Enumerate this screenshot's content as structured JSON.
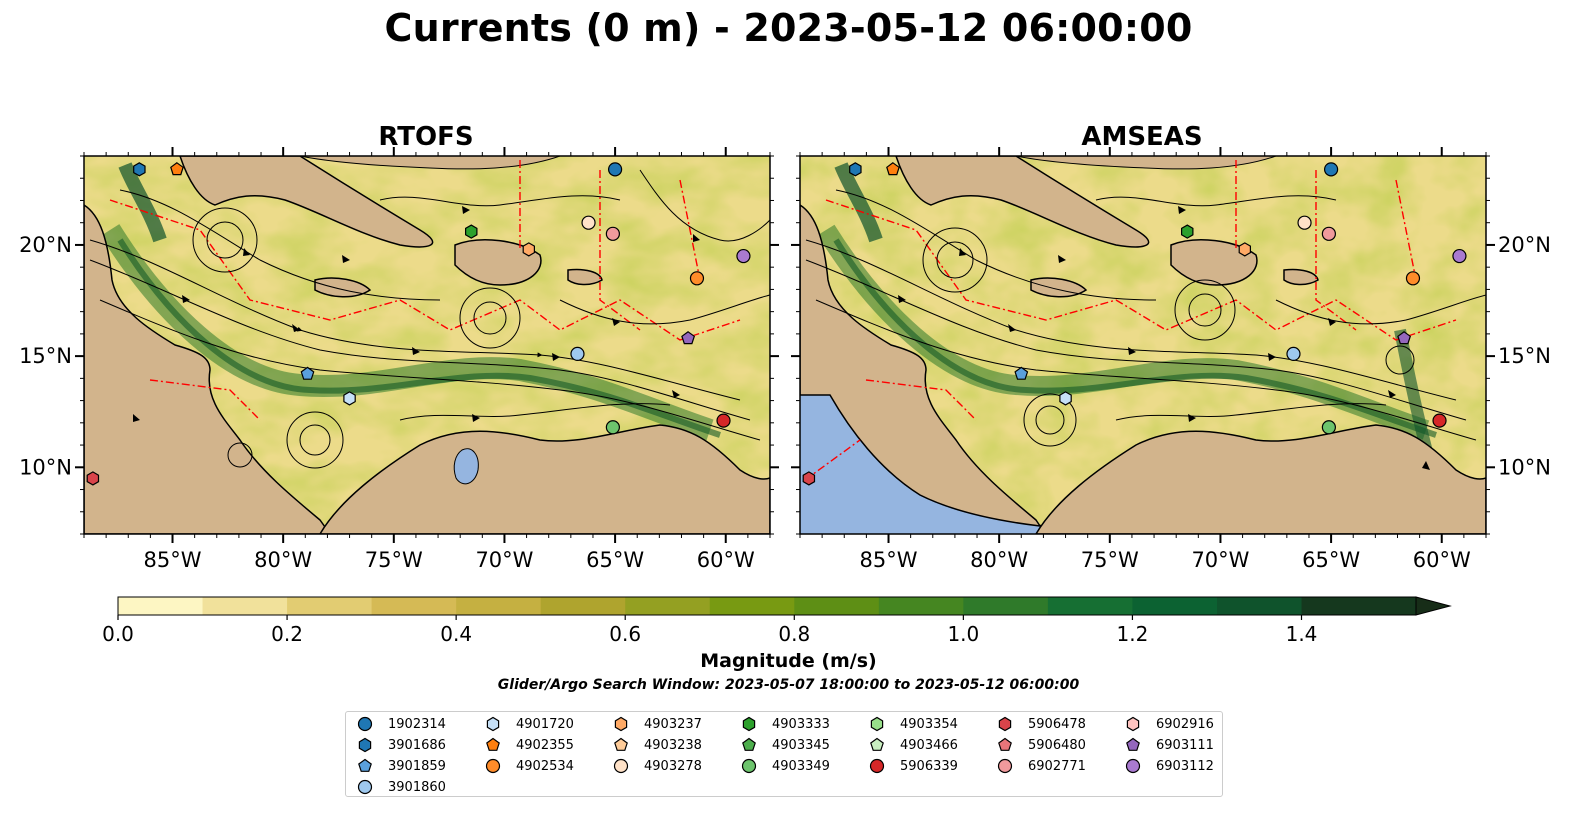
{
  "title": "Currents (0 m) - 2023-05-12 06:00:00",
  "panels": [
    {
      "title": "RTOFS"
    },
    {
      "title": "AMSEAS"
    }
  ],
  "axes": {
    "lon_ticks": [
      "85°W",
      "80°W",
      "75°W",
      "70°W",
      "65°W",
      "60°W"
    ],
    "lat_ticks": [
      "20°N",
      "15°N",
      "10°N"
    ]
  },
  "colorbar": {
    "label": "Magnitude (m/s)",
    "tick_labels": [
      "0.0",
      "0.2",
      "0.4",
      "0.6",
      "0.8",
      "1.0",
      "1.2",
      "1.4"
    ],
    "colors": [
      "#fdf6c3",
      "#f1e19b",
      "#e2cc72",
      "#d5ba55",
      "#c5b041",
      "#afa42e",
      "#94a022",
      "#789a12",
      "#5e8f15",
      "#458621",
      "#2f7a2a",
      "#166f33",
      "#0c6232",
      "#0f532c",
      "#134525",
      "#15381e",
      "#172d18"
    ]
  },
  "search_window": "Glider/Argo Search Window: 2023-05-07 18:00:00 to 2023-05-12 06:00:00",
  "legend": [
    {
      "id": "1902314",
      "marker": "circle",
      "color": "#1f77b4"
    },
    {
      "id": "3901686",
      "marker": "hexagon",
      "color": "#1f77b4"
    },
    {
      "id": "3901859",
      "marker": "pentagon",
      "color": "#5aa0dc"
    },
    {
      "id": "3901860",
      "marker": "circle",
      "color": "#9ec8ee"
    },
    {
      "id": "4901720",
      "marker": "hexagon",
      "color": "#c6e0f7"
    },
    {
      "id": "4902355",
      "marker": "pentagon",
      "color": "#ff7f0e"
    },
    {
      "id": "4902534",
      "marker": "circle",
      "color": "#ff8c2a"
    },
    {
      "id": "4903237",
      "marker": "hexagon",
      "color": "#ffaa66"
    },
    {
      "id": "4903238",
      "marker": "pentagon",
      "color": "#ffcc99"
    },
    {
      "id": "4903278",
      "marker": "circle",
      "color": "#ffe2c8"
    },
    {
      "id": "4903333",
      "marker": "hexagon",
      "color": "#2ca02c"
    },
    {
      "id": "4903345",
      "marker": "pentagon",
      "color": "#4cae4c"
    },
    {
      "id": "4903349",
      "marker": "circle",
      "color": "#6dc46d"
    },
    {
      "id": "4903354",
      "marker": "hexagon",
      "color": "#98df8a"
    },
    {
      "id": "4903466",
      "marker": "pentagon",
      "color": "#c9efc1"
    },
    {
      "id": "5906339",
      "marker": "circle",
      "color": "#d62728"
    },
    {
      "id": "5906478",
      "marker": "hexagon",
      "color": "#d9444a"
    },
    {
      "id": "5906480",
      "marker": "pentagon",
      "color": "#e8757a"
    },
    {
      "id": "6902771",
      "marker": "circle",
      "color": "#f09a9c"
    },
    {
      "id": "6902916",
      "marker": "hexagon",
      "color": "#ffc4c0"
    },
    {
      "id": "6903111",
      "marker": "pentagon",
      "color": "#9467bd"
    },
    {
      "id": "6903112",
      "marker": "circle",
      "color": "#a97ad0"
    }
  ],
  "chart_data": {
    "type": "heatmap",
    "variable": "Magnitude (m/s)",
    "depth_m": 0,
    "valid_time": "2023-05-12 06:00:00",
    "lon_range": [
      -89,
      -58
    ],
    "lat_range": [
      7,
      24
    ],
    "colorbar_range": [
      0.0,
      1.5
    ],
    "colorbar_extend": "max",
    "colors": {
      "land": "#d2b48c",
      "ocean_outside": "#95b5e0",
      "eez": "#ff0000"
    },
    "floats": {
      "RTOFS": [
        {
          "id": "1902314",
          "lon": -65.0,
          "lat": 23.4
        },
        {
          "id": "3901686",
          "lon": -86.5,
          "lat": 23.4
        },
        {
          "id": "3901859",
          "lon": -78.9,
          "lat": 14.2
        },
        {
          "id": "3901860",
          "lon": -66.7,
          "lat": 15.1
        },
        {
          "id": "4901720",
          "lon": -77.0,
          "lat": 13.1
        },
        {
          "id": "4902355",
          "lon": -84.8,
          "lat": 23.4
        },
        {
          "id": "4902534",
          "lon": -61.3,
          "lat": 18.5
        },
        {
          "id": "4903237",
          "lon": -68.9,
          "lat": 19.8
        },
        {
          "id": "4903278",
          "lon": -66.2,
          "lat": 21.0
        },
        {
          "id": "4903333",
          "lon": -71.5,
          "lat": 20.6
        },
        {
          "id": "4903349",
          "lon": -65.1,
          "lat": 11.8
        },
        {
          "id": "5906339",
          "lon": -60.1,
          "lat": 12.1
        },
        {
          "id": "5906478",
          "lon": -88.6,
          "lat": 9.5
        },
        {
          "id": "6902771",
          "lon": -65.1,
          "lat": 20.5
        },
        {
          "id": "6903111",
          "lon": -61.7,
          "lat": 15.8
        },
        {
          "id": "6903112",
          "lon": -59.2,
          "lat": 19.5
        }
      ],
      "AMSEAS": [
        {
          "id": "1902314",
          "lon": -65.0,
          "lat": 23.4
        },
        {
          "id": "3901686",
          "lon": -86.5,
          "lat": 23.4
        },
        {
          "id": "3901859",
          "lon": -79.0,
          "lat": 14.2
        },
        {
          "id": "3901860",
          "lon": -66.7,
          "lat": 15.1
        },
        {
          "id": "4901720",
          "lon": -77.0,
          "lat": 13.1
        },
        {
          "id": "4902355",
          "lon": -84.8,
          "lat": 23.4
        },
        {
          "id": "4902534",
          "lon": -61.3,
          "lat": 18.5
        },
        {
          "id": "4903237",
          "lon": -68.9,
          "lat": 19.8
        },
        {
          "id": "4903278",
          "lon": -66.2,
          "lat": 21.0
        },
        {
          "id": "4903333",
          "lon": -71.5,
          "lat": 20.6
        },
        {
          "id": "4903349",
          "lon": -65.1,
          "lat": 11.8
        },
        {
          "id": "5906339",
          "lon": -60.1,
          "lat": 12.1
        },
        {
          "id": "5906478",
          "lon": -88.6,
          "lat": 9.5
        },
        {
          "id": "6902771",
          "lon": -65.1,
          "lat": 20.5
        },
        {
          "id": "6903111",
          "lon": -61.7,
          "lat": 15.8
        },
        {
          "id": "6903112",
          "lon": -59.2,
          "lat": 19.5
        }
      ]
    }
  }
}
